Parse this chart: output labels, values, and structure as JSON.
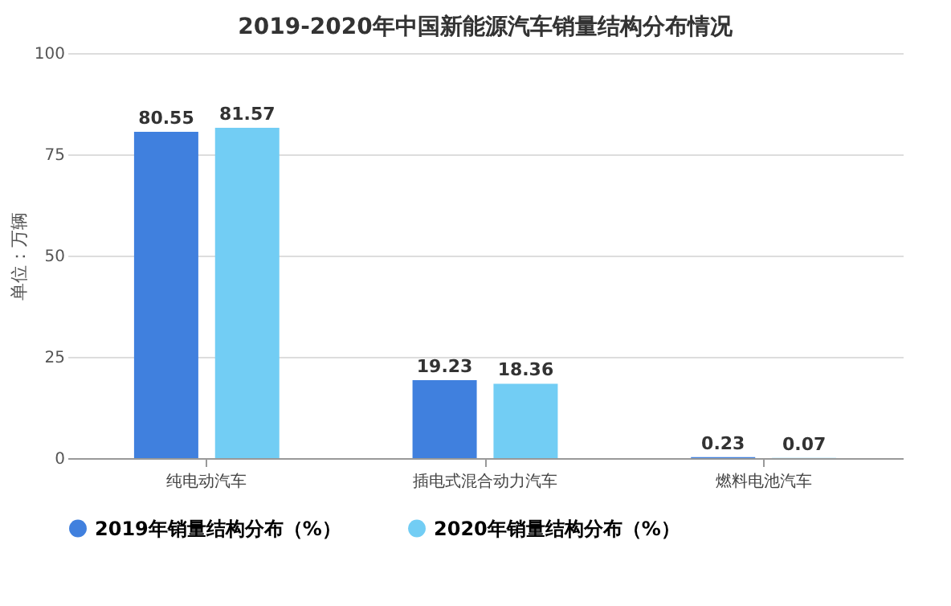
{
  "chart_data": {
    "type": "bar",
    "title": "2019-2020年中国新能源汽车销量结构分布情况",
    "ylabel": "单位：万辆",
    "categories": [
      "纯电动汽车",
      "插电式混合动力汽车",
      "燃料电池汽车"
    ],
    "series": [
      {
        "name": "2019年销量结构分布（%）",
        "color": "#4080de",
        "values": [
          80.55,
          19.23,
          0.23
        ]
      },
      {
        "name": "2020年销量结构分布（%）",
        "color": "#72cdf4",
        "values": [
          81.57,
          18.36,
          0.07
        ]
      }
    ],
    "ylim": [
      0,
      100
    ],
    "yticks": [
      0,
      25,
      50,
      75,
      100
    ],
    "grid": "y",
    "legend": "bottom",
    "data_labels": true
  }
}
